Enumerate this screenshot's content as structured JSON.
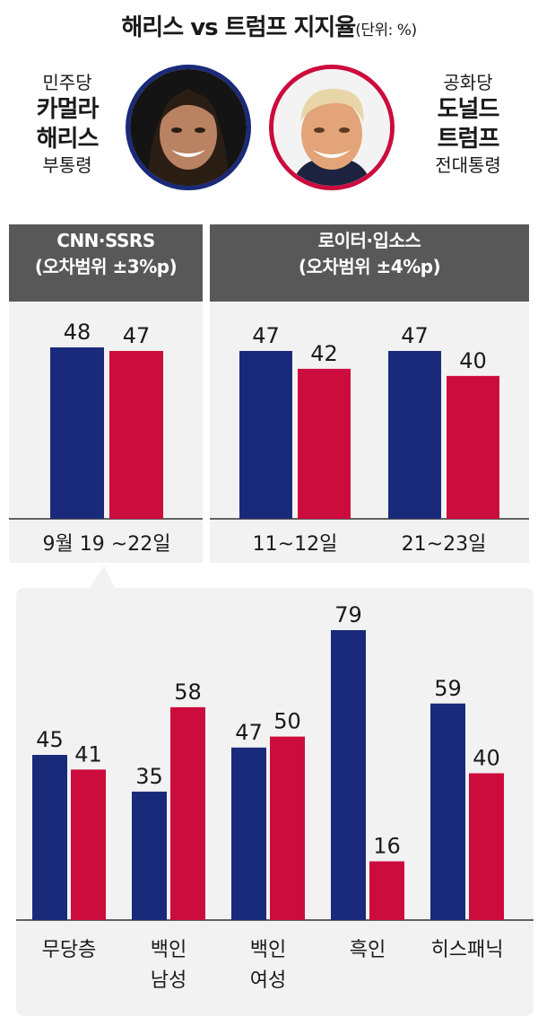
{
  "title": {
    "main": "해리스 vs 트럼프 지지율",
    "unit": "(단위: %)"
  },
  "candidates": {
    "left": {
      "party": "민주당",
      "name_line1": "카멀라",
      "name_line2": "해리스",
      "role": "부통령",
      "photo_icon": "harris-portrait-icon",
      "ring_color": "#1a2a7a"
    },
    "right": {
      "party": "공화당",
      "name_line1": "도널드",
      "name_line2": "트럼프",
      "role": "전대통령",
      "photo_icon": "trump-portrait-icon",
      "ring_color": "#cc0c3d"
    }
  },
  "colors": {
    "harris": "#1a2a7a",
    "trump": "#cc0c3d",
    "header_bg": "#585858",
    "panel_bg": "#f2f2f2"
  },
  "polls": {
    "cnn": {
      "name": "CNN·SSRS",
      "margin": "(오차범위 ±3%p)"
    },
    "reuters": {
      "name": "로이터·입소스",
      "margin": "(오차범위 ±4%p)"
    }
  },
  "chart_data": [
    {
      "type": "bar",
      "title": "CNN·SSRS",
      "categories": [
        "9월 19 ~22일"
      ],
      "series": [
        {
          "values": [
            48
          ]
        },
        {
          "values": [
            47
          ]
        }
      ]
    },
    {
      "type": "bar",
      "title": "로이터·입소스",
      "categories": [
        "11~12일",
        "21~23일"
      ],
      "series": [
        {
          "values": [
            47,
            47
          ]
        },
        {
          "values": [
            42,
            40
          ]
        }
      ]
    },
    {
      "type": "bar",
      "categories": [
        "무당층",
        "백인 남성",
        "백인 여성",
        "흑인",
        "히스패닉"
      ],
      "series": [
        {
          "values": [
            45,
            35,
            47,
            79,
            59
          ]
        },
        {
          "values": [
            41,
            58,
            50,
            16,
            40
          ]
        }
      ]
    }
  ]
}
